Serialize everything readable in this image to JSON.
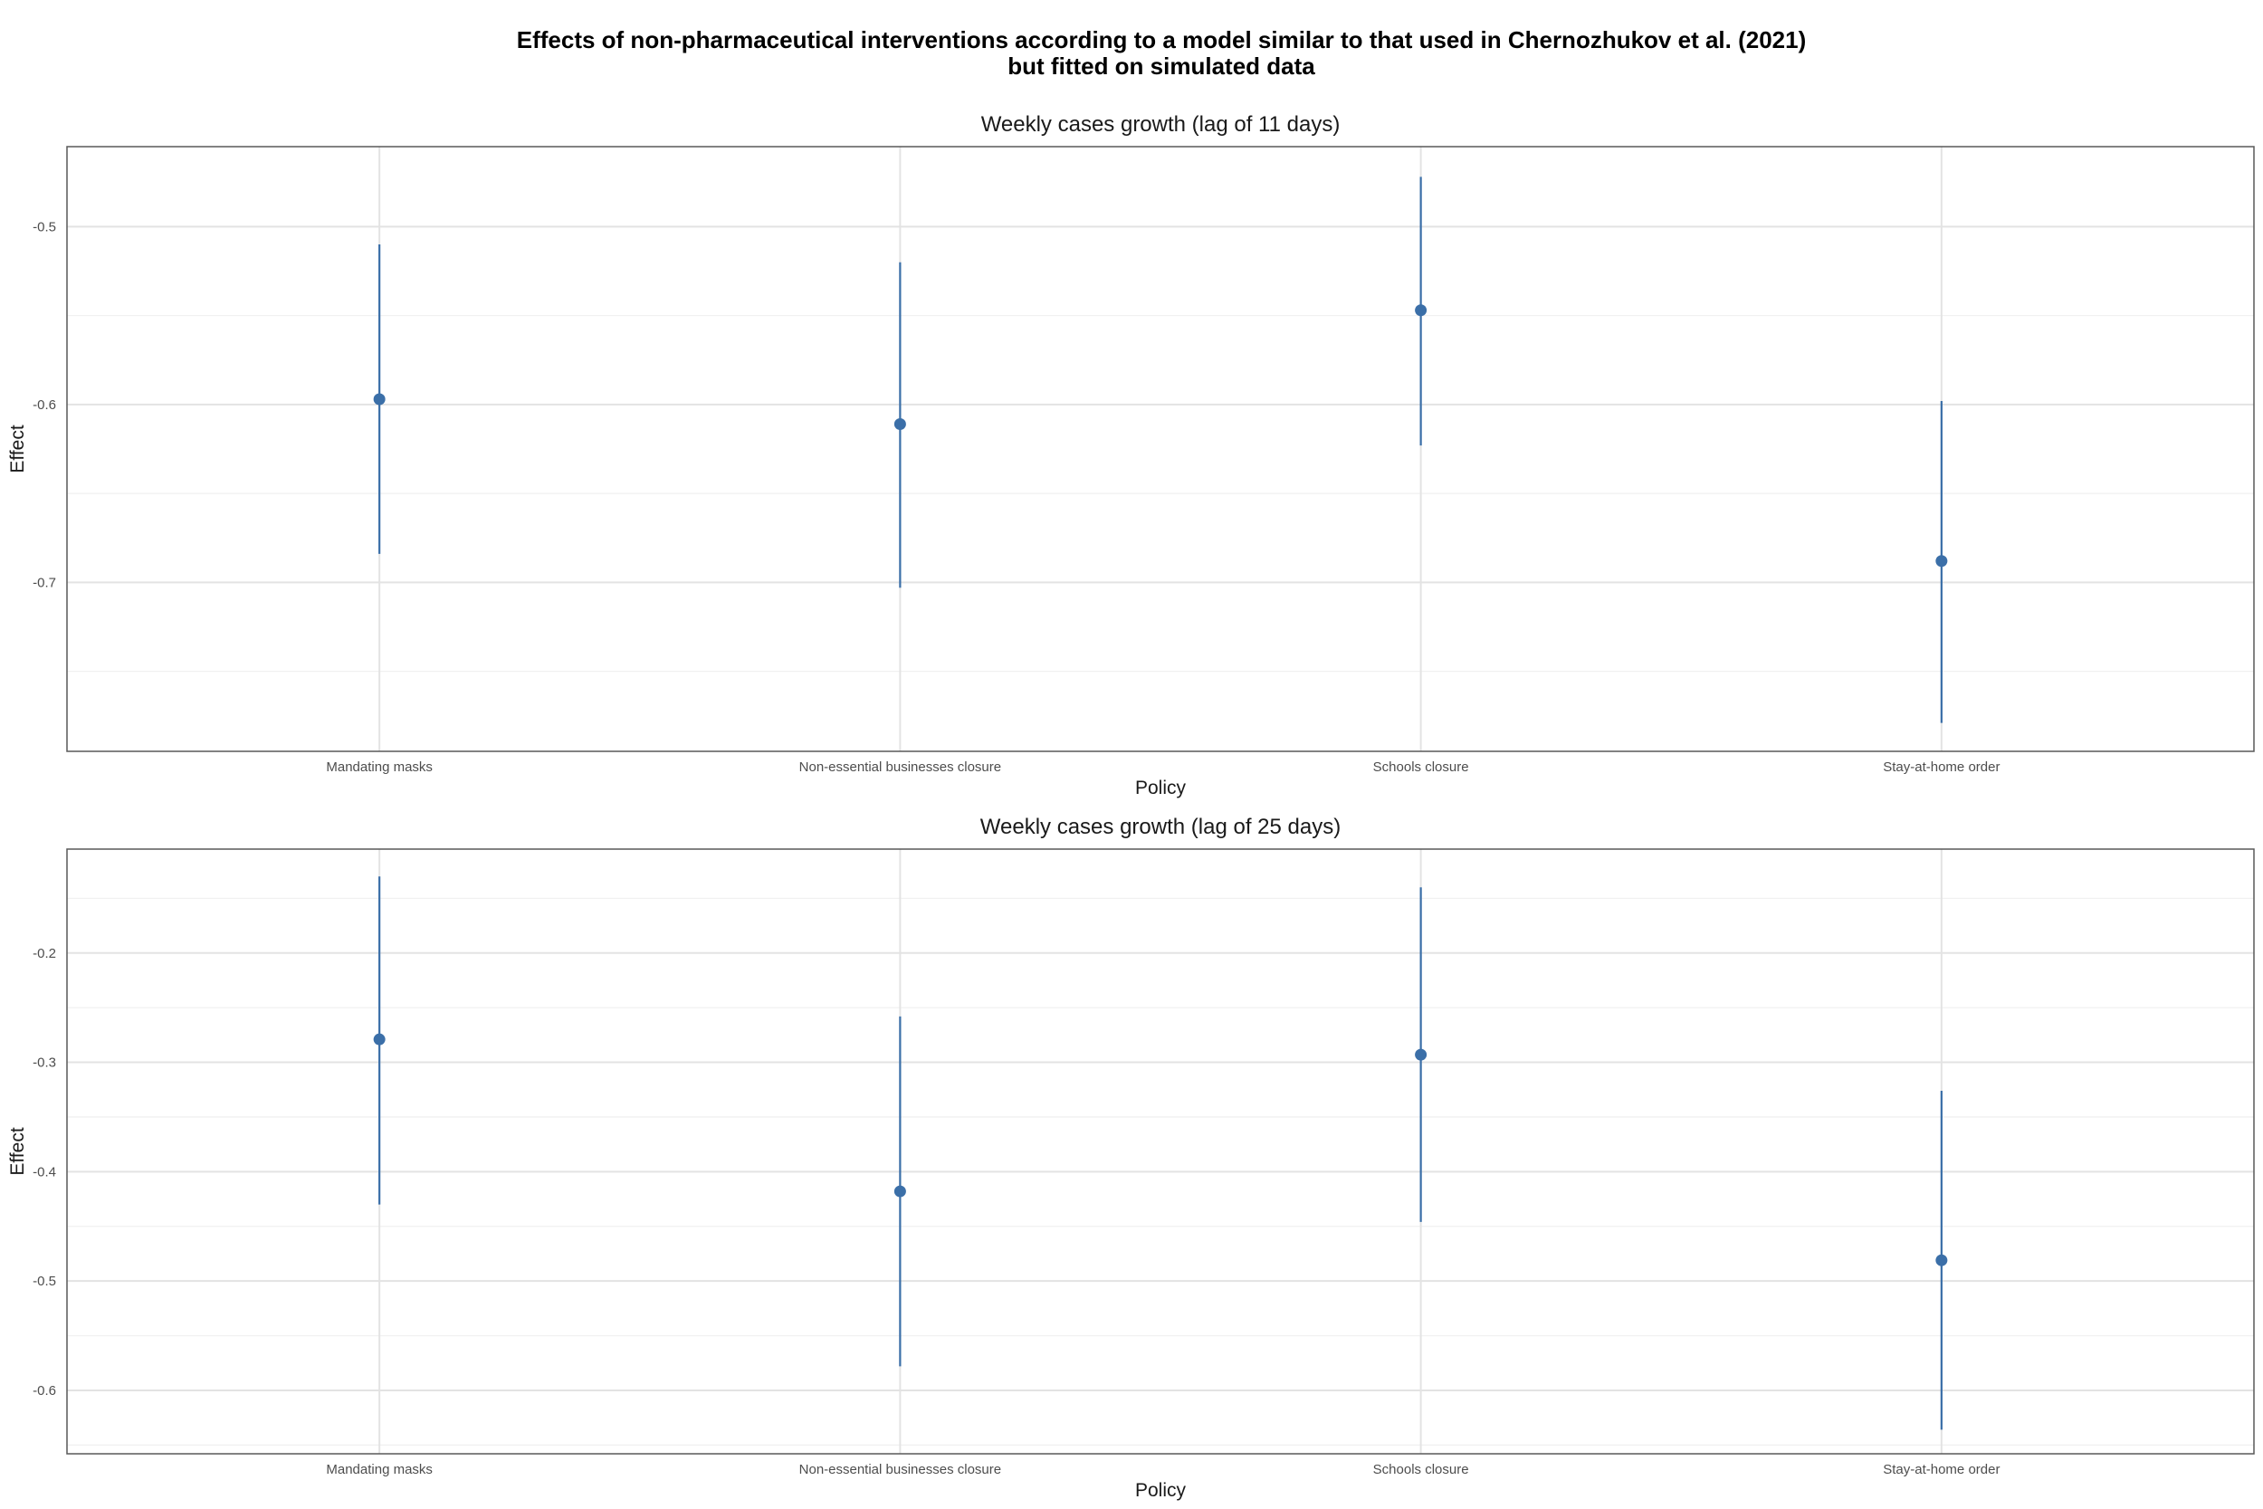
{
  "figure": {
    "title_line1": "Effects of non-pharmaceutical interventions according to a model similar to that used in Chernozhukov et al. (2021)",
    "title_line2": "but fitted on simulated data"
  },
  "colors": {
    "point": "#3B6FA8",
    "errorbar": "#3B6FA8",
    "grid_major": "#E3E3E3",
    "grid_minor": "#F1F1F1",
    "panel_border": "#595959"
  },
  "chart_data": [
    {
      "type": "scatter",
      "title": "Weekly cases growth (lag of 11 days)",
      "xlabel": "Policy",
      "ylabel": "Effect",
      "categories": [
        "Mandating masks",
        "Non-essential businesses closure",
        "Schools closure",
        "Stay-at-home order"
      ],
      "values": [
        -0.597,
        -0.611,
        -0.547,
        -0.688
      ],
      "lower": [
        -0.684,
        -0.703,
        -0.623,
        -0.779
      ],
      "upper": [
        -0.51,
        -0.52,
        -0.472,
        -0.598
      ],
      "ylim": [
        -0.795,
        -0.455
      ],
      "yticks": [
        -0.7,
        -0.6,
        -0.5
      ],
      "ytick_labels": [
        "-0.7",
        "-0.6",
        "-0.5"
      ],
      "grid": true,
      "legend": "none"
    },
    {
      "type": "scatter",
      "title": "Weekly cases growth (lag of 25 days)",
      "xlabel": "Policy",
      "ylabel": "Effect",
      "categories": [
        "Mandating masks",
        "Non-essential businesses closure",
        "Schools closure",
        "Stay-at-home order"
      ],
      "values": [
        -0.279,
        -0.418,
        -0.293,
        -0.481
      ],
      "lower": [
        -0.43,
        -0.578,
        -0.446,
        -0.636
      ],
      "upper": [
        -0.13,
        -0.258,
        -0.14,
        -0.326
      ],
      "ylim": [
        -0.658,
        -0.105
      ],
      "yticks": [
        -0.6,
        -0.5,
        -0.4,
        -0.3,
        -0.2
      ],
      "ytick_labels": [
        "-0.6",
        "-0.5",
        "-0.4",
        "-0.3",
        "-0.2"
      ],
      "grid": true,
      "legend": "none"
    }
  ]
}
